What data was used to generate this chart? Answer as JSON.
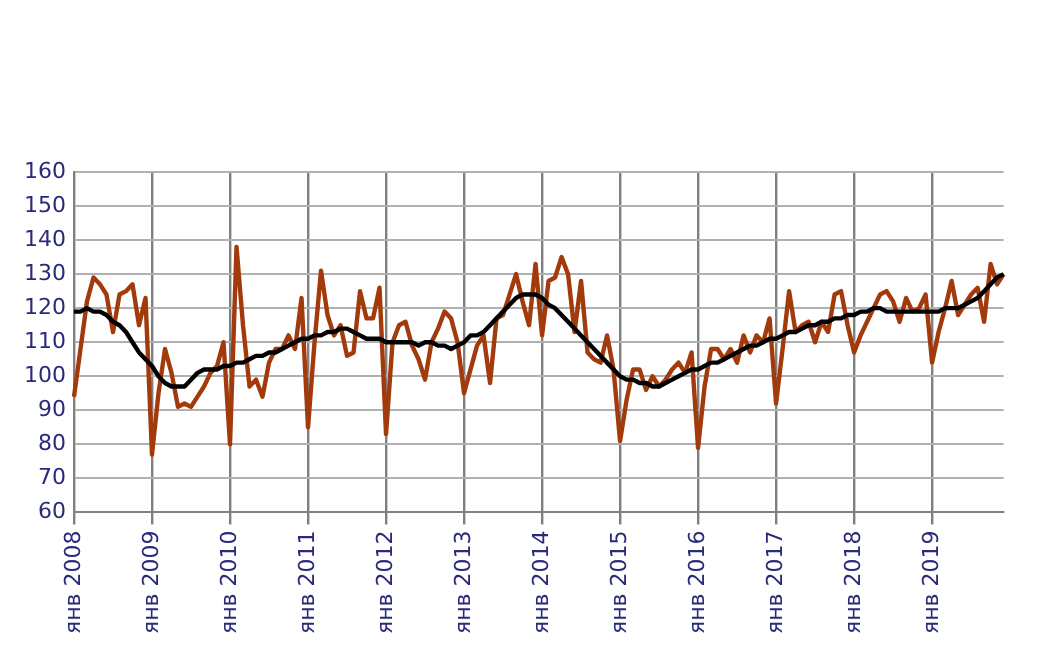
{
  "chart_data": {
    "type": "line",
    "categories": [
      "янв 2008",
      null,
      null,
      null,
      null,
      null,
      null,
      null,
      null,
      null,
      null,
      null,
      "янв 2009",
      null,
      null,
      null,
      null,
      null,
      null,
      null,
      null,
      null,
      null,
      null,
      "янв 2010",
      null,
      null,
      null,
      null,
      null,
      null,
      null,
      null,
      null,
      null,
      null,
      "янв 2011",
      null,
      null,
      null,
      null,
      null,
      null,
      null,
      null,
      null,
      null,
      null,
      "янв 2012",
      null,
      null,
      null,
      null,
      null,
      null,
      null,
      null,
      null,
      null,
      null,
      "янв 2013",
      null,
      null,
      null,
      null,
      null,
      null,
      null,
      null,
      null,
      null,
      null,
      "янв 2014",
      null,
      null,
      null,
      null,
      null,
      null,
      null,
      null,
      null,
      null,
      null,
      "янв 2015",
      null,
      null,
      null,
      null,
      null,
      null,
      null,
      null,
      null,
      null,
      null,
      "янв 2016",
      null,
      null,
      null,
      null,
      null,
      null,
      null,
      null,
      null,
      null,
      null,
      "янв 2017",
      null,
      null,
      null,
      null,
      null,
      null,
      null,
      null,
      null,
      null,
      null,
      "янв 2018",
      null,
      null,
      null,
      null,
      null,
      null,
      null,
      null,
      null,
      null,
      null,
      "янв 2019",
      null,
      null,
      null,
      null,
      null,
      null,
      null,
      null,
      null,
      null,
      null
    ],
    "series": [
      {
        "color": "#a33a0c",
        "values": [
          94,
          108,
          122,
          129,
          127,
          124,
          113,
          124,
          125,
          127,
          115,
          123,
          77,
          95,
          108,
          101,
          91,
          92,
          91,
          94,
          97,
          101,
          103,
          110,
          80,
          138,
          115,
          97,
          99,
          94,
          104,
          108,
          108,
          112,
          108,
          123,
          85,
          110,
          131,
          118,
          112,
          115,
          106,
          107,
          125,
          117,
          117,
          126,
          83,
          110,
          115,
          116,
          109,
          105,
          99,
          110,
          114,
          119,
          117,
          110,
          95,
          102,
          109,
          112,
          98,
          117,
          118,
          124,
          130,
          122,
          115,
          133,
          112,
          128,
          129,
          135,
          130,
          113,
          128,
          107,
          105,
          104,
          112,
          102,
          81,
          93,
          102,
          102,
          96,
          100,
          97,
          99,
          102,
          104,
          101,
          107,
          79,
          97,
          108,
          108,
          105,
          108,
          104,
          112,
          107,
          112,
          110,
          117,
          92,
          108,
          125,
          113,
          115,
          116,
          110,
          116,
          113,
          124,
          125,
          115,
          107,
          112,
          116,
          120,
          124,
          125,
          122,
          116,
          123,
          119,
          120,
          124,
          104,
          113,
          120,
          128,
          118,
          121,
          124,
          126,
          116,
          133,
          127,
          130
        ]
      },
      {
        "color": "#000000",
        "values": [
          119,
          119,
          120,
          119,
          119,
          118,
          116,
          115,
          113,
          110,
          107,
          105,
          103,
          100,
          98,
          97,
          97,
          97,
          99,
          101,
          102,
          102,
          102,
          103,
          103,
          104,
          104,
          105,
          106,
          106,
          107,
          107,
          108,
          109,
          110,
          111,
          111,
          112,
          112,
          113,
          113,
          114,
          114,
          113,
          112,
          111,
          111,
          111,
          110,
          110,
          110,
          110,
          110,
          109,
          110,
          110,
          109,
          109,
          108,
          109,
          110,
          112,
          112,
          113,
          115,
          117,
          119,
          121,
          123,
          124,
          124,
          124,
          123,
          121,
          120,
          118,
          116,
          114,
          112,
          110,
          108,
          106,
          104,
          102,
          100,
          99,
          99,
          98,
          98,
          97,
          97,
          98,
          99,
          100,
          101,
          102,
          102,
          103,
          104,
          104,
          105,
          106,
          107,
          108,
          109,
          109,
          110,
          111,
          111,
          112,
          113,
          113,
          114,
          115,
          115,
          116,
          116,
          117,
          117,
          118,
          118,
          119,
          119,
          120,
          120,
          119,
          119,
          119,
          119,
          119,
          119,
          119,
          119,
          119,
          120,
          120,
          120,
          121,
          122,
          123,
          125,
          127,
          129,
          130
        ]
      }
    ],
    "ylim": [
      60,
      160
    ],
    "yticks": [
      60,
      70,
      80,
      90,
      100,
      110,
      120,
      130,
      140,
      150,
      160
    ],
    "grid": true,
    "legend": false,
    "marker": "none",
    "line_style": "solid"
  }
}
